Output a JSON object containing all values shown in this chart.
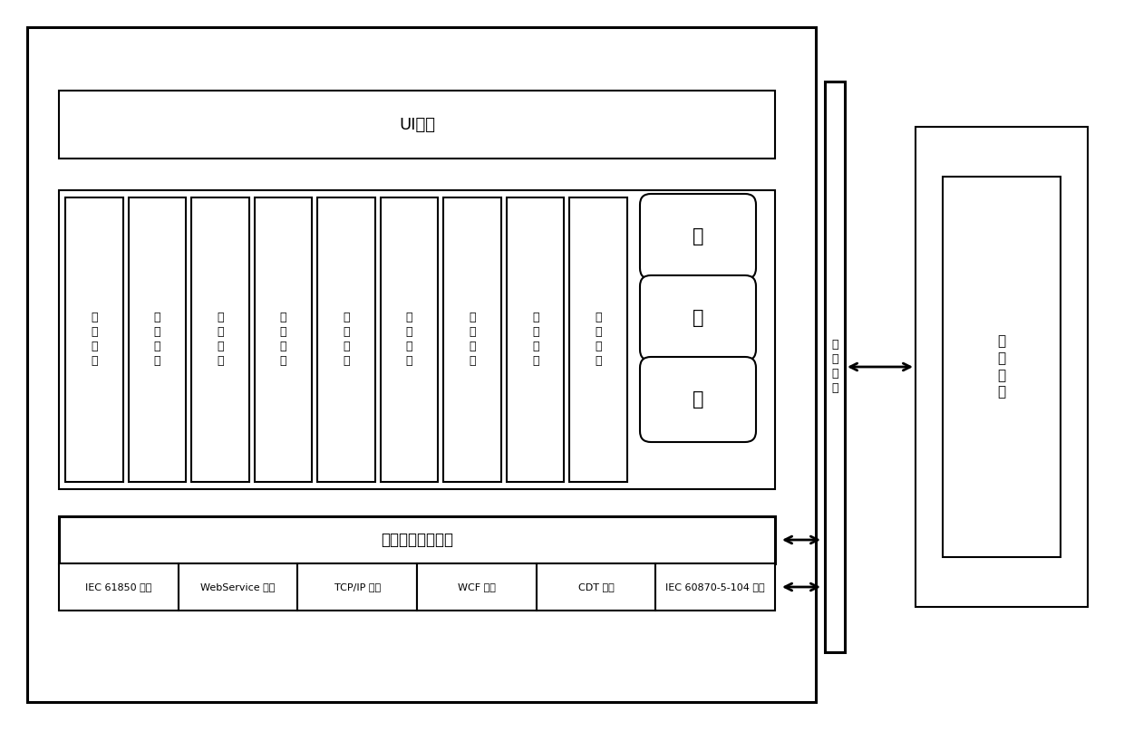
{
  "bg_color": "#ffffff",
  "lc": "#000000",
  "tc": "#000000",
  "ui_label": "UI界面",
  "service_bus_label": "通用服务订阅系统",
  "modules": [
    "权\n限\n管\n理",
    "视\n频\n平\n台",
    "逻\n检\n调\n度",
    "数\n据\n检\n索",
    "事\n项\n系\n统",
    "实\n时\n数\n据",
    "运\n动\n控\n制",
    "电\n子\n流\n图",
    "故\n障\n诊\n断"
  ],
  "db_labels": [
    "数",
    "据",
    "库"
  ],
  "service_items": [
    "IEC 61850 服务",
    "WebService 服务",
    "TCP/IP 服务",
    "WCF 服务",
    "CDT 服务",
    "IEC 60870-5-104 服务"
  ],
  "elec_label": "电\n力\n专\n网",
  "jk_label": "集\n控\n系\n统",
  "lw": 1.5,
  "lw_thick": 2.2
}
